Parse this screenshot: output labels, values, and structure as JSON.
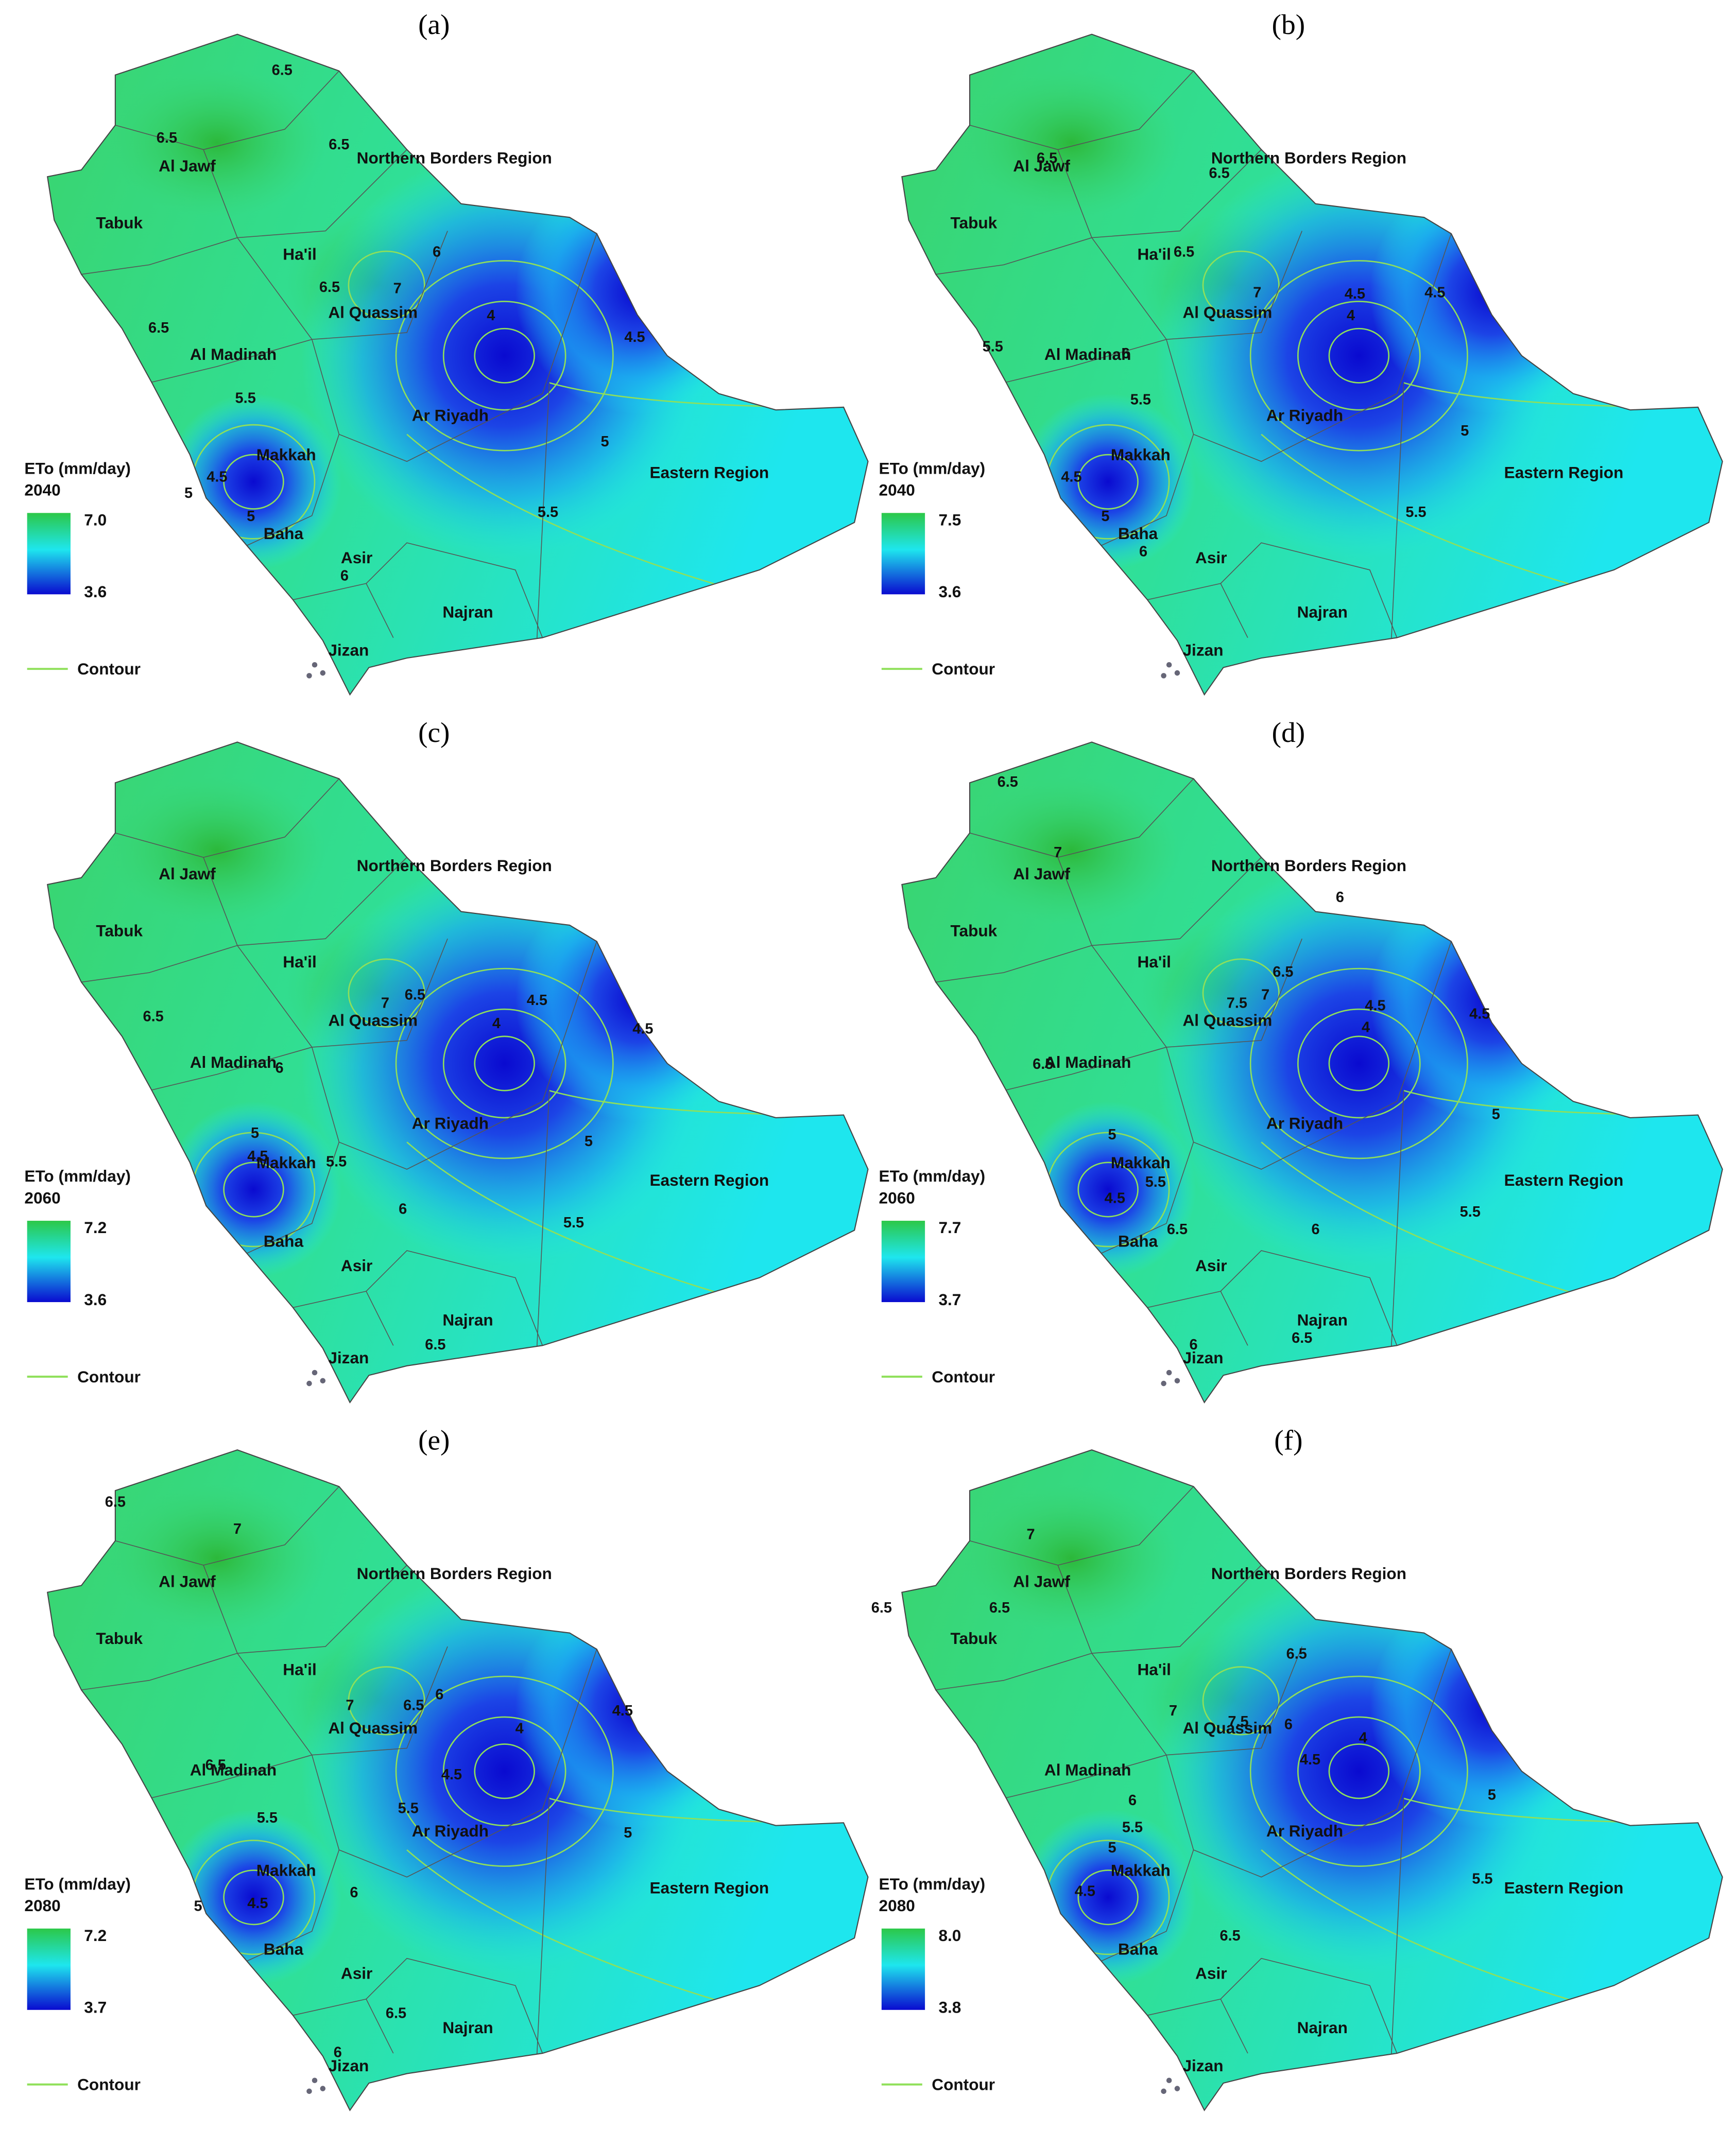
{
  "panels": [
    {
      "label": "(a)",
      "legend": {
        "title": "ETo (mm/day)",
        "year": "2040",
        "max": "7.0",
        "min": "3.6",
        "contour": "Contour"
      },
      "regions": [
        "Al Jawf",
        "Northern Borders Region",
        "Tabuk",
        "Ha'il",
        "Al Quassim",
        "Al Madinah",
        "Ar Riyadh",
        "Makkah",
        "Eastern Region",
        "Baha",
        "Asir",
        "Najran",
        "Jizan"
      ],
      "contour_labels": [
        "6.5",
        "6.5",
        "6.5",
        "6",
        "6.5",
        "7",
        "6.5",
        "4",
        "4.5",
        "5.5",
        "5",
        "4.5",
        "5",
        "5",
        "5.5",
        "6"
      ]
    },
    {
      "label": "(b)",
      "legend": {
        "title": "ETo (mm/day)",
        "year": "2040",
        "max": "7.5",
        "min": "3.6",
        "contour": "Contour"
      },
      "regions": [
        "Al Jawf",
        "Northern Borders Region",
        "Tabuk",
        "Ha'il",
        "Al Quassim",
        "Al Madinah",
        "Ar Riyadh",
        "Makkah",
        "Eastern Region",
        "Baha",
        "Asir",
        "Najran",
        "Jizan"
      ],
      "contour_labels": [
        "6.5",
        "6.5",
        "6.5",
        "7",
        "4.5",
        "4",
        "4.5",
        "5.5",
        "6",
        "5.5",
        "5",
        "4.5",
        "5",
        "5.5",
        "6"
      ]
    },
    {
      "label": "(c)",
      "legend": {
        "title": "ETo (mm/day)",
        "year": "2060",
        "max": "7.2",
        "min": "3.6",
        "contour": "Contour"
      },
      "regions": [
        "Al Jawf",
        "Northern Borders Region",
        "Tabuk",
        "Ha'il",
        "Al Quassim",
        "Al Madinah",
        "Ar Riyadh",
        "Makkah",
        "Eastern Region",
        "Baha",
        "Asir",
        "Najran",
        "Jizan"
      ],
      "contour_labels": [
        "6.5",
        "7",
        "6.5",
        "4.5",
        "4",
        "4.5",
        "6",
        "5",
        "4.5",
        "5.5",
        "5",
        "6",
        "5.5",
        "6.5"
      ]
    },
    {
      "label": "(d)",
      "legend": {
        "title": "ETo (mm/day)",
        "year": "2060",
        "max": "7.7",
        "min": "3.7",
        "contour": "Contour"
      },
      "regions": [
        "Al Jawf",
        "Northern Borders Region",
        "Tabuk",
        "Ha'il",
        "Al Quassim",
        "Al Madinah",
        "Ar Riyadh",
        "Makkah",
        "Eastern Region",
        "Baha",
        "Asir",
        "Najran",
        "Jizan"
      ],
      "contour_labels": [
        "6.5",
        "7",
        "6",
        "6.5",
        "7.5",
        "7",
        "4.5",
        "4",
        "4.5",
        "6.5",
        "5",
        "5",
        "4.5",
        "5.5",
        "5.5",
        "6.5",
        "6",
        "6.5",
        "6"
      ]
    },
    {
      "label": "(e)",
      "legend": {
        "title": "ETo (mm/day)",
        "year": "2080",
        "max": "7.2",
        "min": "3.7",
        "contour": "Contour"
      },
      "regions": [
        "Al Jawf",
        "Northern Borders Region",
        "Tabuk",
        "Ha'il",
        "Al Quassim",
        "Al Madinah",
        "Ar Riyadh",
        "Makkah",
        "Eastern Region",
        "Baha",
        "Asir",
        "Najran",
        "Jizan"
      ],
      "contour_labels": [
        "6.5",
        "7",
        "7",
        "6.5",
        "6",
        "4",
        "4.5",
        "6.5",
        "4.5",
        "5.5",
        "5.5",
        "5",
        "5",
        "4.5",
        "6",
        "6.5",
        "6"
      ]
    },
    {
      "label": "(f)",
      "legend": {
        "title": "ETo (mm/day)",
        "year": "2080",
        "max": "8.0",
        "min": "3.8",
        "contour": "Contour"
      },
      "regions": [
        "Al Jawf",
        "Northern Borders Region",
        "Tabuk",
        "Ha'il",
        "Al Quassim",
        "Al Madinah",
        "Ar Riyadh",
        "Makkah",
        "Eastern Region",
        "Baha",
        "Asir",
        "Najran",
        "Jizan"
      ],
      "contour_labels": [
        "7",
        "6.5",
        "6.5",
        "6.5",
        "7",
        "7.5",
        "6",
        "4",
        "4.5",
        "6",
        "5",
        "5.5",
        "5",
        "4.5",
        "5.5",
        "6.5"
      ]
    }
  ]
}
